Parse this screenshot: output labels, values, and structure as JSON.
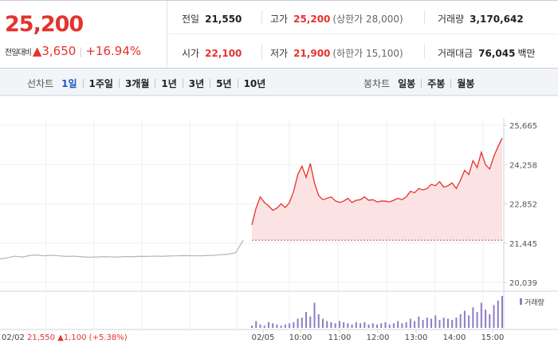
{
  "quote": {
    "current_price": "25,200",
    "change_label": "전일대비",
    "change_arrow": "▲",
    "change_value": "3,650",
    "change_percent": "+16.94%",
    "prev_close": {
      "label": "전일",
      "value": "21,550"
    },
    "high": {
      "label": "고가",
      "value": "25,200",
      "limit_text": "(상한가 28,000)"
    },
    "volume": {
      "label": "거래량",
      "value": "3,170,642"
    },
    "open": {
      "label": "시가",
      "value": "22,100"
    },
    "low": {
      "label": "저가",
      "value": "21,900",
      "limit_text": "(하한가 15,100)"
    },
    "amount": {
      "label": "거래대금",
      "value": "76,045",
      "unit": "백만"
    }
  },
  "line_chart_tabs": {
    "title": "선차트",
    "items": [
      "1일",
      "1주일",
      "3개월",
      "1년",
      "3년",
      "5년",
      "10년"
    ],
    "active": "1일"
  },
  "candle_chart_tabs": {
    "title": "봉차트",
    "items": [
      "일봉",
      "주봉",
      "월봉"
    ]
  },
  "colors": {
    "up": "#e5322d",
    "active_tab": "#1f57c3",
    "prev_day_line": "#b5b5b5",
    "area_fill": "#fbdede",
    "volume_bar": "#8e7cc3"
  },
  "chart_data": {
    "type": "line",
    "y_ticks": [
      "25,665",
      "24,258",
      "22,852",
      "21,445",
      "20,039"
    ],
    "ylim": [
      20039,
      25665
    ],
    "reference_price": 21550,
    "x_labels": [
      "02/05",
      "10:00",
      "11:00",
      "12:00",
      "13:00",
      "14:00",
      "15:00"
    ],
    "prev_day": {
      "date": "02/02",
      "close": "21,550",
      "change_arrow": "▲",
      "change": "1,100",
      "change_percent": "(+5.38%)",
      "values": [
        20880,
        20920,
        20980,
        20950,
        21000,
        21020,
        20990,
        21010,
        20990,
        20970,
        20980,
        20960,
        20940,
        20950,
        20960,
        20955,
        20950,
        20965,
        20960,
        20975,
        20970,
        20980,
        20975,
        20985,
        20990,
        21000,
        20995,
        20990,
        21000,
        21010,
        21030,
        21050,
        21100,
        21550
      ]
    },
    "today": {
      "values": [
        22100,
        22700,
        23100,
        22900,
        22780,
        22620,
        22700,
        22850,
        22720,
        22900,
        23300,
        23900,
        24200,
        23800,
        24300,
        23600,
        23150,
        23000,
        23050,
        23100,
        22960,
        22900,
        22950,
        23050,
        22900,
        22980,
        23000,
        23100,
        22980,
        23000,
        22920,
        22950,
        22950,
        22920,
        22980,
        23050,
        23000,
        23100,
        23300,
        23250,
        23400,
        23350,
        23400,
        23550,
        23500,
        23650,
        23450,
        23500,
        23600,
        23400,
        23700,
        24050,
        23900,
        24400,
        24150,
        24700,
        24250,
        24100,
        24550,
        24900,
        25200
      ]
    },
    "volume_legend": "거래량",
    "volume": {
      "values": [
        2,
        6,
        3,
        2,
        5,
        4,
        3,
        2,
        3,
        4,
        5,
        8,
        9,
        14,
        10,
        22,
        12,
        8,
        6,
        5,
        4,
        6,
        5,
        4,
        3,
        5,
        4,
        5,
        3,
        4,
        3,
        4,
        5,
        3,
        4,
        6,
        4,
        5,
        8,
        6,
        10,
        7,
        9,
        8,
        11,
        7,
        9,
        8,
        7,
        9,
        12,
        15,
        11,
        18,
        14,
        22,
        16,
        12,
        20,
        24,
        28
      ]
    }
  }
}
